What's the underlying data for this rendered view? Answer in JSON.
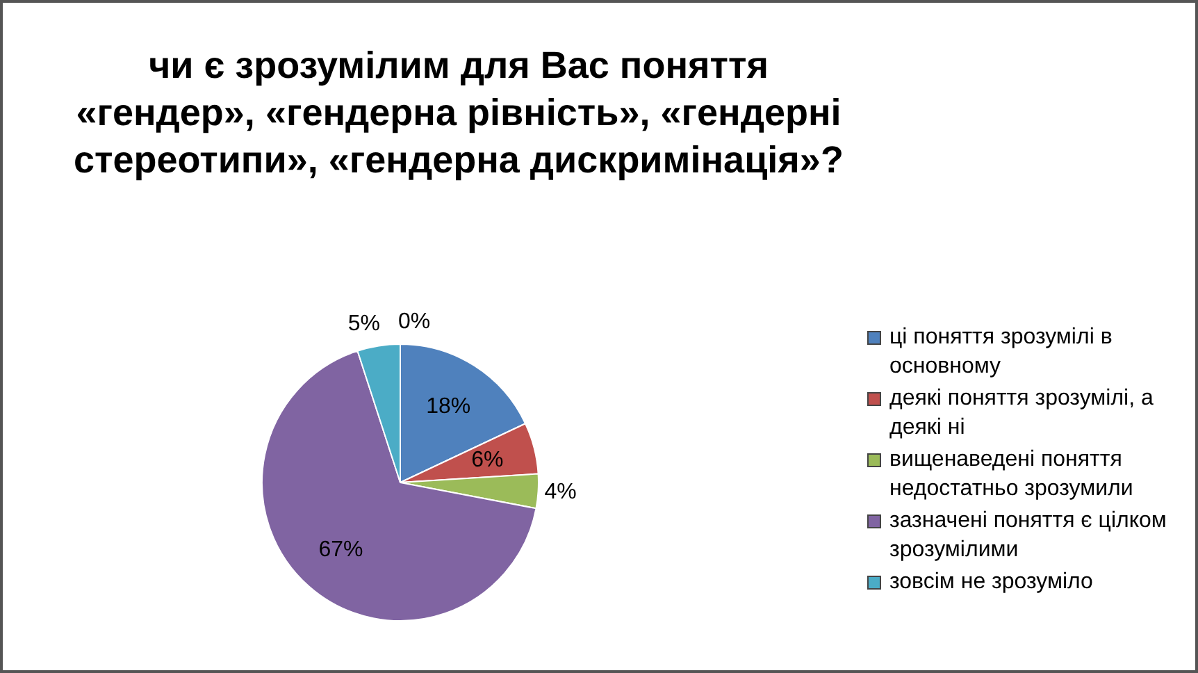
{
  "chart_data": {
    "type": "pie",
    "title": "чи є зрозумілим для Вас поняття «гендер», «гендерна рівність», «гендерні стереотипи», «гендерна дискримінація»?",
    "categories": [
      "ці поняття зрозумілі в основному",
      "деякі поняття зрозумілі, а деякі ні",
      "вищенаведені поняття недостатньо зрозумили",
      "зазначені поняття є цілком зрозумілими",
      "зовсім не зрозуміло",
      null
    ],
    "values": [
      18,
      6,
      4,
      67,
      5,
      0
    ],
    "colors": [
      "#4f81bd",
      "#c0504d",
      "#9bbb59",
      "#8064a2",
      "#4bacc6",
      "#f79646"
    ],
    "value_labels": [
      "18%",
      "6%",
      "4%",
      "67%",
      "5%",
      "0%"
    ],
    "legend": "right"
  }
}
